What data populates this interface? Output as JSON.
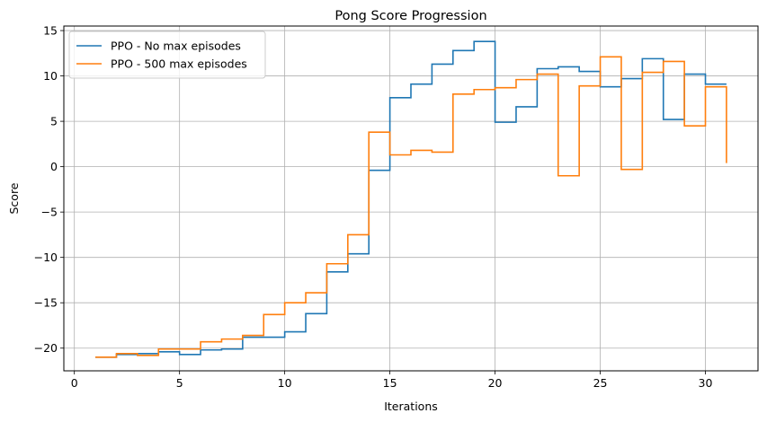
{
  "chart_data": {
    "type": "line",
    "step": "post",
    "title": "Pong Score Progression",
    "xlabel": "Iterations",
    "ylabel": "Score",
    "xlim": [
      -0.5,
      32.5
    ],
    "ylim": [
      -22.5,
      15.5
    ],
    "xticks": [
      0,
      5,
      10,
      15,
      20,
      25,
      30
    ],
    "yticks": [
      -20,
      -15,
      -10,
      -5,
      0,
      5,
      10,
      15
    ],
    "grid": true,
    "legend_position": "top-left",
    "series": [
      {
        "name": "PPO - No max episodes",
        "color": "#1f77b4",
        "x": [
          1,
          2,
          3,
          4,
          5,
          6,
          7,
          8,
          9,
          10,
          11,
          12,
          13,
          14,
          15,
          16,
          17,
          18,
          19,
          20,
          21,
          22,
          23,
          24,
          25,
          26,
          27,
          28,
          29,
          30,
          31
        ],
        "y": [
          -21.0,
          -20.7,
          -20.6,
          -20.4,
          -20.7,
          -20.2,
          -20.1,
          -18.8,
          -18.8,
          -18.2,
          -16.2,
          -11.6,
          -9.6,
          -0.4,
          7.6,
          9.1,
          11.3,
          12.8,
          13.8,
          4.9,
          6.6,
          10.8,
          11.0,
          10.5,
          8.8,
          9.7,
          11.9,
          5.2,
          10.2,
          9.1,
          9.1
        ]
      },
      {
        "name": "PPO - 500 max episodes",
        "color": "#ff7f0e",
        "x": [
          1,
          2,
          3,
          4,
          5,
          6,
          7,
          8,
          9,
          10,
          11,
          12,
          13,
          14,
          15,
          16,
          17,
          18,
          19,
          20,
          21,
          22,
          23,
          24,
          25,
          26,
          27,
          28,
          29,
          30,
          31
        ],
        "y": [
          -21.0,
          -20.6,
          -20.8,
          -20.1,
          -20.1,
          -19.3,
          -19.0,
          -18.6,
          -16.3,
          -15.0,
          -13.9,
          -10.7,
          -7.5,
          3.8,
          1.3,
          1.8,
          1.6,
          8.0,
          8.5,
          8.7,
          9.6,
          10.2,
          -1.0,
          8.9,
          12.1,
          -0.3,
          10.4,
          11.6,
          4.5,
          8.8,
          0.4
        ]
      }
    ]
  }
}
